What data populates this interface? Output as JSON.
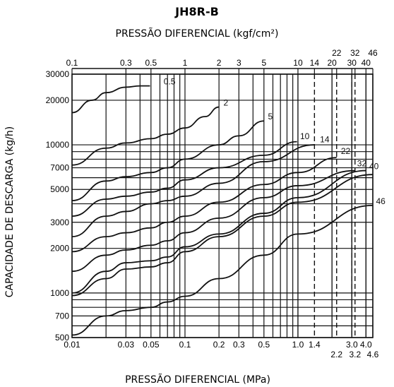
{
  "chart_data": {
    "type": "line",
    "title": "JH8R-B",
    "top_axis_label": "PRESSÃO DIFERENCIAL (kgf/cm²)",
    "xlabel": "PRESSÃO DIFERENCIAL (MPa)",
    "ylabel": "CAPACIDADE DE DESCARGA (kg/h)",
    "x_scale": "log",
    "y_scale": "log",
    "xlim": [
      0.01,
      4.6
    ],
    "ylim": [
      500,
      30000
    ],
    "grid": true,
    "x_ticks": [
      {
        "value": 0.01,
        "label": "0.01"
      },
      {
        "value": 0.03,
        "label": "0.03"
      },
      {
        "value": 0.05,
        "label": "0.05"
      },
      {
        "value": 0.1,
        "label": "0.1"
      },
      {
        "value": 0.2,
        "label": "0.2"
      },
      {
        "value": 0.3,
        "label": "0.3"
      },
      {
        "value": 0.5,
        "label": "0.5"
      },
      {
        "value": 1.0,
        "label": "1.0"
      },
      {
        "value": 1.4,
        "label": "1.4"
      },
      {
        "value": 3.0,
        "label": "3.0"
      },
      {
        "value": 4.0,
        "label": "4.0"
      }
    ],
    "x_ticks_lower": [
      {
        "value": 2.2,
        "label": "2.2"
      },
      {
        "value": 3.2,
        "label": "3.2"
      },
      {
        "value": 4.6,
        "label": "4.6"
      }
    ],
    "top_ticks": [
      {
        "value": 0.1,
        "label": "0.1"
      },
      {
        "value": 0.3,
        "label": "0.3"
      },
      {
        "value": 0.5,
        "label": "0.5"
      },
      {
        "value": 1,
        "label": "1"
      },
      {
        "value": 2,
        "label": "2"
      },
      {
        "value": 3,
        "label": "3"
      },
      {
        "value": 5,
        "label": "5"
      },
      {
        "value": 10,
        "label": "10"
      },
      {
        "value": 14,
        "label": "14"
      },
      {
        "value": 20,
        "label": "20"
      },
      {
        "value": 30,
        "label": "30"
      },
      {
        "value": 40,
        "label": "40"
      }
    ],
    "top_ticks_upper": [
      {
        "value": 22,
        "label": "22"
      },
      {
        "value": 32,
        "label": "32"
      },
      {
        "value": 46,
        "label": "46"
      }
    ],
    "y_ticks": [
      {
        "value": 500,
        "label": "500"
      },
      {
        "value": 700,
        "label": "700"
      },
      {
        "value": 1000,
        "label": "1000"
      },
      {
        "value": 2000,
        "label": "2000"
      },
      {
        "value": 3000,
        "label": "3000"
      },
      {
        "value": 5000,
        "label": "5000"
      },
      {
        "value": 7000,
        "label": "7000"
      },
      {
        "value": 10000,
        "label": "10000"
      },
      {
        "value": 20000,
        "label": "20000"
      },
      {
        "value": 30000,
        "label": "30000"
      }
    ],
    "dashed_x": [
      1.4,
      2.2,
      3.0,
      3.2
    ],
    "series": [
      {
        "name": "0.5",
        "points": [
          [
            0.01,
            16500
          ],
          [
            0.015,
            20000
          ],
          [
            0.02,
            22500
          ],
          [
            0.03,
            24500
          ],
          [
            0.04,
            25000
          ],
          [
            0.049,
            25000
          ]
        ]
      },
      {
        "name": "2",
        "points": [
          [
            0.01,
            7300
          ],
          [
            0.02,
            9500
          ],
          [
            0.03,
            10300
          ],
          [
            0.05,
            11000
          ],
          [
            0.07,
            11800
          ],
          [
            0.1,
            13000
          ],
          [
            0.15,
            15500
          ],
          [
            0.2,
            18000
          ]
        ]
      },
      {
        "name": "5",
        "points": [
          [
            0.01,
            4200
          ],
          [
            0.02,
            5700
          ],
          [
            0.03,
            6100
          ],
          [
            0.05,
            6500
          ],
          [
            0.07,
            7000
          ],
          [
            0.1,
            8000
          ],
          [
            0.2,
            10000
          ],
          [
            0.3,
            11500
          ],
          [
            0.5,
            14500
          ]
        ]
      },
      {
        "name": "10",
        "points": [
          [
            0.01,
            3300
          ],
          [
            0.02,
            4300
          ],
          [
            0.03,
            4500
          ],
          [
            0.05,
            4800
          ],
          [
            0.07,
            5100
          ],
          [
            0.1,
            5800
          ],
          [
            0.2,
            7000
          ],
          [
            0.5,
            8500
          ],
          [
            0.98,
            10500
          ]
        ]
      },
      {
        "name": "14",
        "points": [
          [
            0.01,
            2400
          ],
          [
            0.02,
            3300
          ],
          [
            0.03,
            3550
          ],
          [
            0.05,
            4000
          ],
          [
            0.07,
            4200
          ],
          [
            0.1,
            4500
          ],
          [
            0.2,
            5500
          ],
          [
            0.5,
            7700
          ],
          [
            1.4,
            10000
          ]
        ]
      },
      {
        "name": "22",
        "points": [
          [
            0.01,
            1900
          ],
          [
            0.02,
            2400
          ],
          [
            0.03,
            2550
          ],
          [
            0.05,
            2750
          ],
          [
            0.07,
            3000
          ],
          [
            0.1,
            3300
          ],
          [
            0.2,
            4100
          ],
          [
            0.5,
            5400
          ],
          [
            1.0,
            6500
          ],
          [
            2.2,
            8200
          ]
        ]
      },
      {
        "name": "32",
        "points": [
          [
            0.01,
            1400
          ],
          [
            0.02,
            1800
          ],
          [
            0.03,
            1950
          ],
          [
            0.05,
            2100
          ],
          [
            0.07,
            2250
          ],
          [
            0.1,
            2550
          ],
          [
            0.2,
            3200
          ],
          [
            0.5,
            4400
          ],
          [
            1.0,
            5300
          ],
          [
            3.2,
            6700
          ]
        ]
      },
      {
        "name": "40",
        "points": [
          [
            0.01,
            1000
          ],
          [
            0.02,
            1400
          ],
          [
            0.03,
            1600
          ],
          [
            0.05,
            1650
          ],
          [
            0.07,
            1750
          ],
          [
            0.1,
            2050
          ],
          [
            0.2,
            2500
          ],
          [
            0.5,
            3450
          ],
          [
            1.0,
            4400
          ],
          [
            4.0,
            6700
          ]
        ]
      },
      {
        "name": "46",
        "points": [
          [
            0.01,
            960
          ],
          [
            0.02,
            1250
          ],
          [
            0.03,
            1450
          ],
          [
            0.05,
            1500
          ],
          [
            0.07,
            1600
          ],
          [
            0.1,
            1900
          ],
          [
            0.2,
            2400
          ],
          [
            0.5,
            3300
          ],
          [
            1.0,
            4100
          ],
          [
            4.6,
            6300
          ]
        ]
      },
      {
        "name": "",
        "points": [
          [
            0.01,
            520
          ],
          [
            0.02,
            700
          ],
          [
            0.03,
            760
          ],
          [
            0.05,
            800
          ],
          [
            0.07,
            870
          ],
          [
            0.1,
            950
          ],
          [
            0.2,
            1250
          ],
          [
            0.5,
            1800
          ],
          [
            1.0,
            2500
          ],
          [
            4.6,
            3900
          ]
        ]
      }
    ],
    "curve_labels": [
      {
        "text": "0.5",
        "x": 0.062,
        "y": 25000
      },
      {
        "text": "2",
        "x": 0.21,
        "y": 18000
      },
      {
        "text": "5",
        "x": 0.52,
        "y": 14500
      },
      {
        "text": "10",
        "x": 1.0,
        "y": 10700
      },
      {
        "text": "14",
        "x": 1.5,
        "y": 10200
      },
      {
        "text": "22",
        "x": 2.3,
        "y": 8500
      },
      {
        "text": "32",
        "x": 3.2,
        "y": 7000
      },
      {
        "text": "40",
        "x": 4.1,
        "y": 6700
      },
      {
        "text": "46",
        "x": 4.7,
        "y": 3900
      }
    ]
  }
}
